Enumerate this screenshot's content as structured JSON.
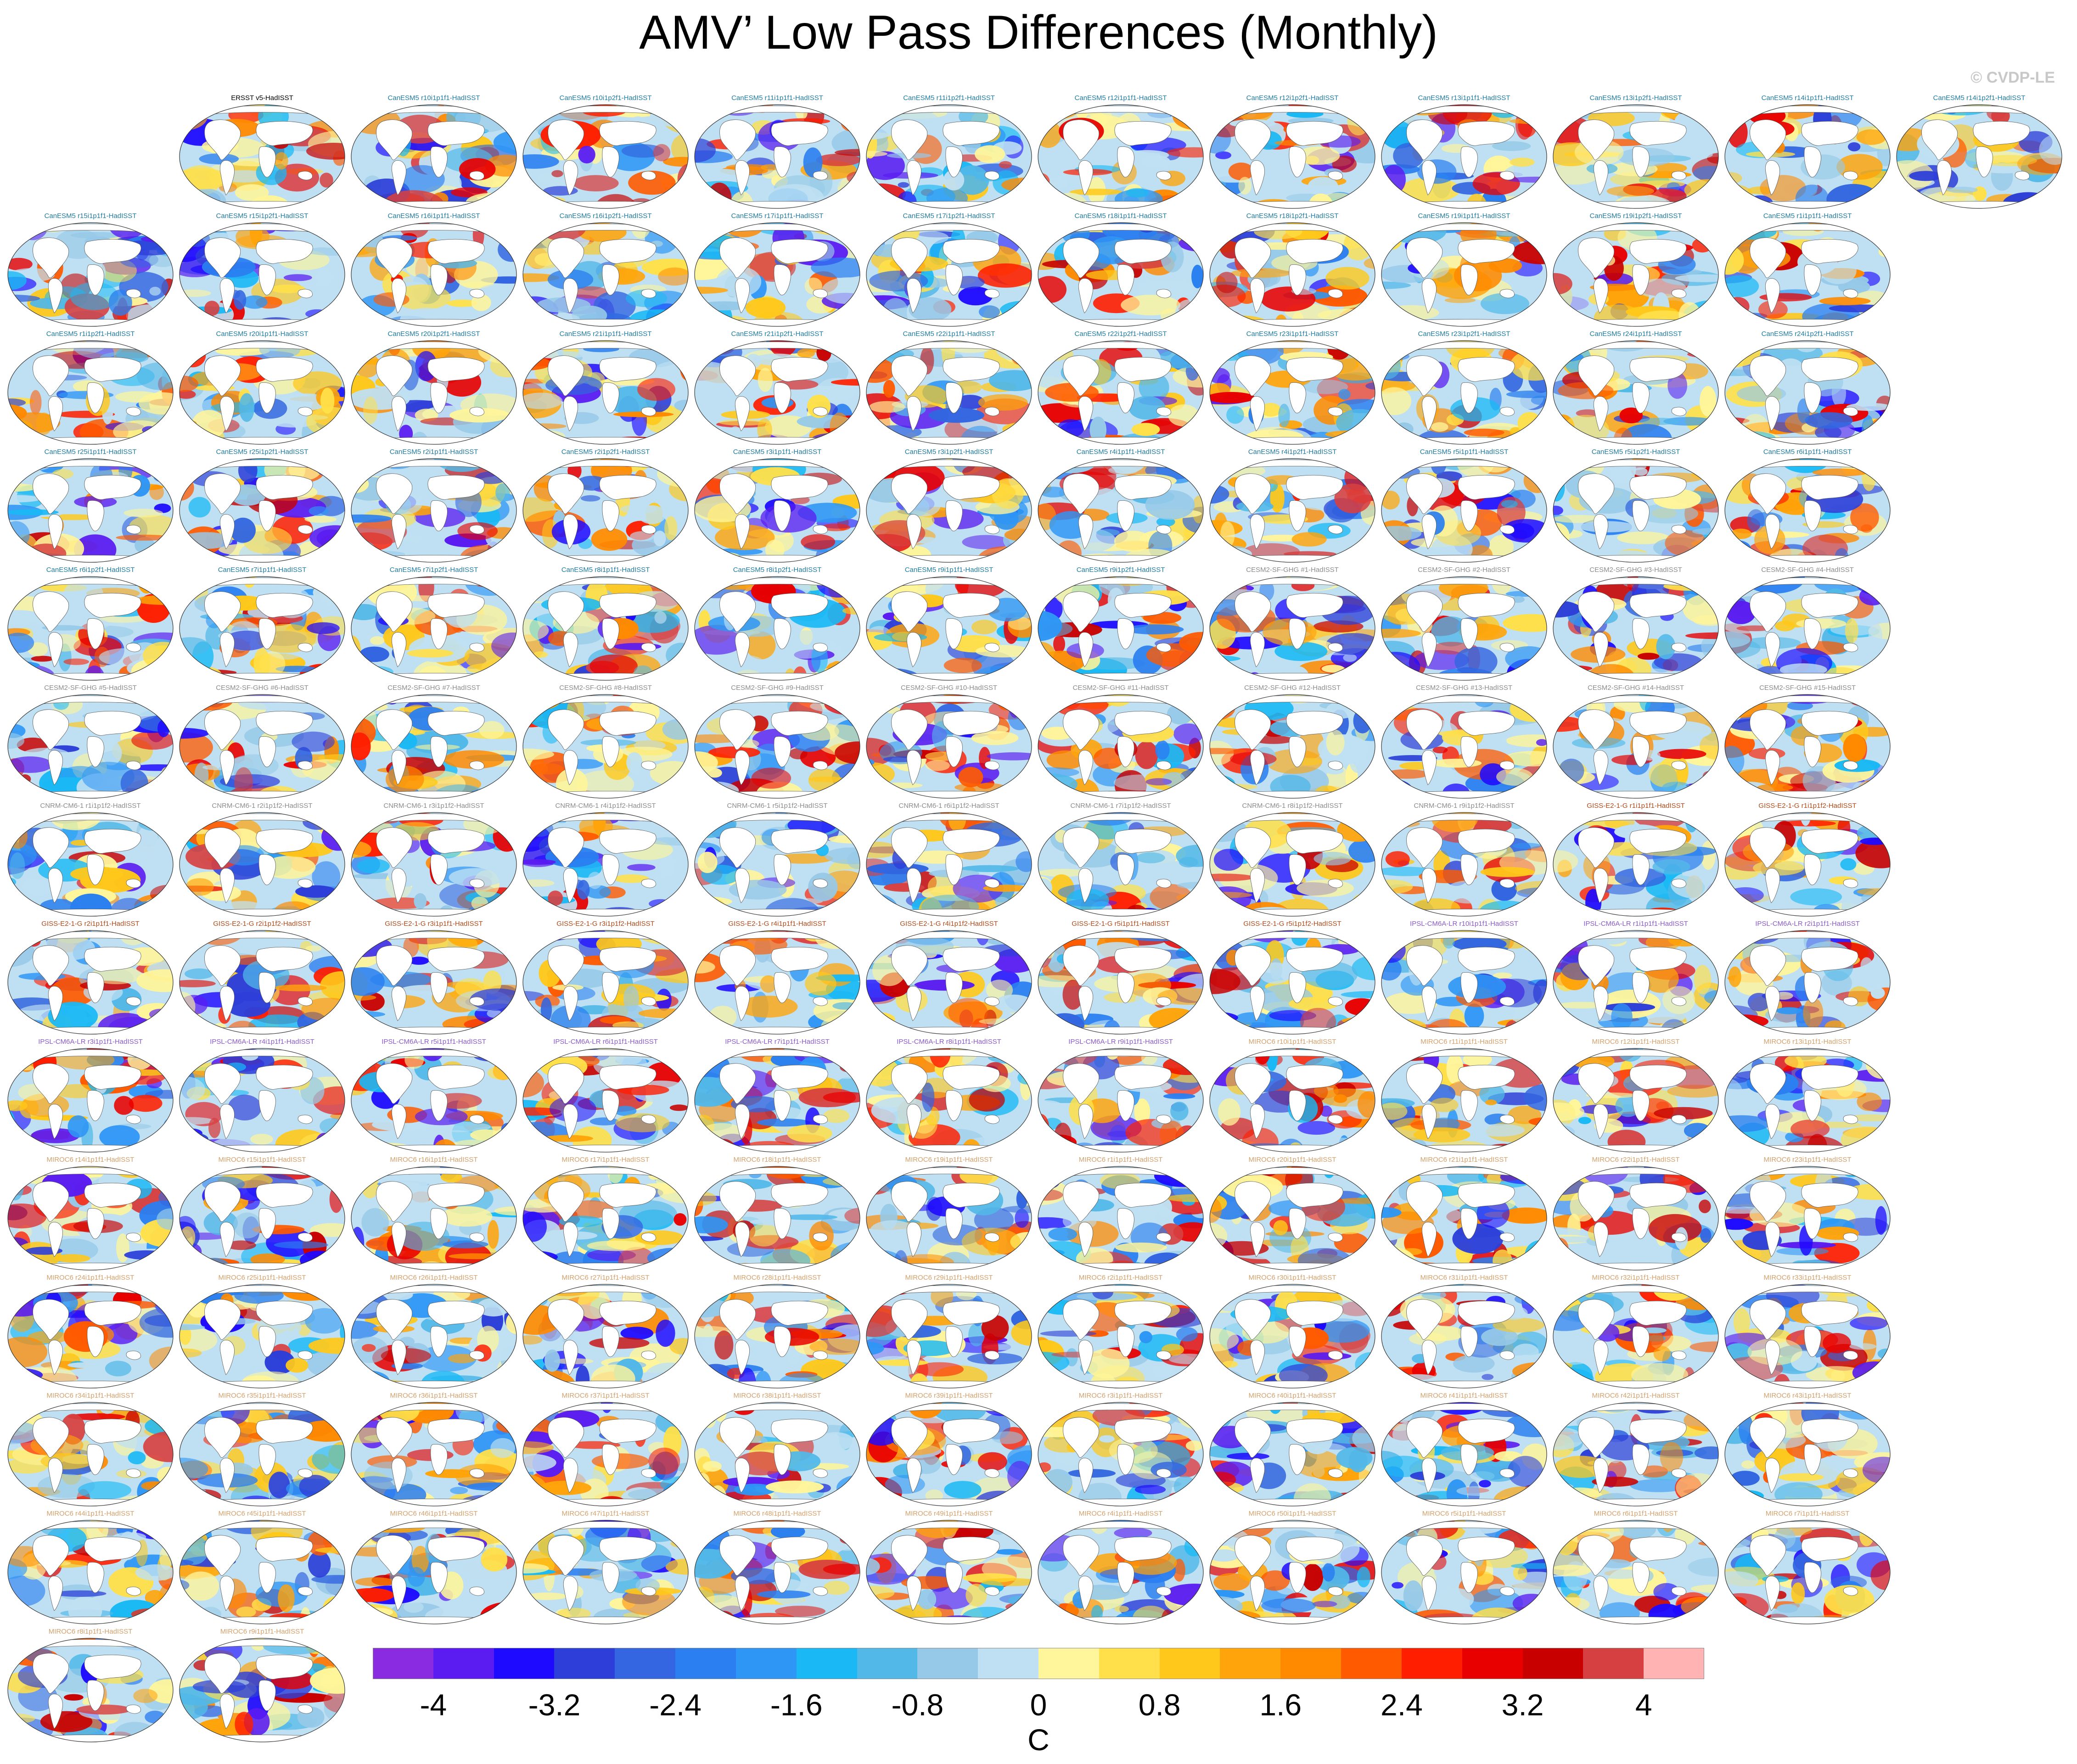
{
  "title": "AMV’ Low Pass Differences (Monthly)",
  "watermark": "© CVDP-LE",
  "chart_data": {
    "type": "heatmap",
    "title": "AMV’ Low Pass Differences (Monthly)",
    "projection": "Robinson global maps",
    "colorbar": {
      "units": "C",
      "ticks": [
        "-4",
        "-3.2",
        "-2.4",
        "-1.6",
        "-0.8",
        "0",
        "0.8",
        "1.6",
        "2.4",
        "3.2",
        "4"
      ],
      "colors": [
        "#8a2be2",
        "#5a1cf0",
        "#1e0aff",
        "#2d3fd8",
        "#3366e0",
        "#2b7ff0",
        "#2e96f5",
        "#1ab9f5",
        "#52b8e8",
        "#96c9e8",
        "#bfe0f2",
        "#fff59a",
        "#ffe04a",
        "#ffc81a",
        "#ffa40a",
        "#ff8a00",
        "#ff5a00",
        "#ff1e00",
        "#e80000",
        "#c80000",
        "#d74040",
        "#ffb3b3"
      ]
    },
    "panels": [
      {
        "label": "ERSST v5-HadISST",
        "color": "#000000"
      },
      {
        "label": "CanESM5 r10i1p1f1-HadISST",
        "color": "#1f7ba0"
      },
      {
        "label": "CanESM5 r10i1p2f1-HadISST",
        "color": "#1f7ba0"
      },
      {
        "label": "CanESM5 r11i1p1f1-HadISST",
        "color": "#1f7ba0"
      },
      {
        "label": "CanESM5 r11i1p2f1-HadISST",
        "color": "#1f7ba0"
      },
      {
        "label": "CanESM5 r12i1p1f1-HadISST",
        "color": "#1f7ba0"
      },
      {
        "label": "CanESM5 r12i1p2f1-HadISST",
        "color": "#1f7ba0"
      },
      {
        "label": "CanESM5 r13i1p1f1-HadISST",
        "color": "#1f7ba0"
      },
      {
        "label": "CanESM5 r13i1p2f1-HadISST",
        "color": "#1f7ba0"
      },
      {
        "label": "CanESM5 r14i1p1f1-HadISST",
        "color": "#1f7ba0"
      },
      {
        "label": "CanESM5 r14i1p2f1-HadISST",
        "color": "#1f7ba0"
      },
      {
        "label": "CanESM5 r15i1p1f1-HadISST",
        "color": "#1f7ba0"
      },
      {
        "label": "CanESM5 r15i1p2f1-HadISST",
        "color": "#1f7ba0"
      },
      {
        "label": "CanESM5 r16i1p1f1-HadISST",
        "color": "#1f7ba0"
      },
      {
        "label": "CanESM5 r16i1p2f1-HadISST",
        "color": "#1f7ba0"
      },
      {
        "label": "CanESM5 r17i1p1f1-HadISST",
        "color": "#1f7ba0"
      },
      {
        "label": "CanESM5 r17i1p2f1-HadISST",
        "color": "#1f7ba0"
      },
      {
        "label": "CanESM5 r18i1p1f1-HadISST",
        "color": "#1f7ba0"
      },
      {
        "label": "CanESM5 r18i1p2f1-HadISST",
        "color": "#1f7ba0"
      },
      {
        "label": "CanESM5 r19i1p1f1-HadISST",
        "color": "#1f7ba0"
      },
      {
        "label": "CanESM5 r19i1p2f1-HadISST",
        "color": "#1f7ba0"
      },
      {
        "label": "CanESM5 r1i1p1f1-HadISST",
        "color": "#1f7ba0"
      },
      {
        "label": "CanESM5 r1i1p2f1-HadISST",
        "color": "#1f7ba0"
      },
      {
        "label": "CanESM5 r20i1p1f1-HadISST",
        "color": "#1f7ba0"
      },
      {
        "label": "CanESM5 r20i1p2f1-HadISST",
        "color": "#1f7ba0"
      },
      {
        "label": "CanESM5 r21i1p1f1-HadISST",
        "color": "#1f7ba0"
      },
      {
        "label": "CanESM5 r21i1p2f1-HadISST",
        "color": "#1f7ba0"
      },
      {
        "label": "CanESM5 r22i1p1f1-HadISST",
        "color": "#1f7ba0"
      },
      {
        "label": "CanESM5 r22i1p2f1-HadISST",
        "color": "#1f7ba0"
      },
      {
        "label": "CanESM5 r23i1p1f1-HadISST",
        "color": "#1f7ba0"
      },
      {
        "label": "CanESM5 r23i1p2f1-HadISST",
        "color": "#1f7ba0"
      },
      {
        "label": "CanESM5 r24i1p1f1-HadISST",
        "color": "#1f7ba0"
      },
      {
        "label": "CanESM5 r24i1p2f1-HadISST",
        "color": "#1f7ba0"
      },
      {
        "label": "CanESM5 r25i1p1f1-HadISST",
        "color": "#1f7ba0"
      },
      {
        "label": "CanESM5 r25i1p2f1-HadISST",
        "color": "#1f7ba0"
      },
      {
        "label": "CanESM5 r2i1p1f1-HadISST",
        "color": "#1f7ba0"
      },
      {
        "label": "CanESM5 r2i1p2f1-HadISST",
        "color": "#1f7ba0"
      },
      {
        "label": "CanESM5 r3i1p1f1-HadISST",
        "color": "#1f7ba0"
      },
      {
        "label": "CanESM5 r3i1p2f1-HadISST",
        "color": "#1f7ba0"
      },
      {
        "label": "CanESM5 r4i1p1f1-HadISST",
        "color": "#1f7ba0"
      },
      {
        "label": "CanESM5 r4i1p2f1-HadISST",
        "color": "#1f7ba0"
      },
      {
        "label": "CanESM5 r5i1p1f1-HadISST",
        "color": "#1f7ba0"
      },
      {
        "label": "CanESM5 r5i1p2f1-HadISST",
        "color": "#1f7ba0"
      },
      {
        "label": "CanESM5 r6i1p1f1-HadISST",
        "color": "#1f7ba0"
      },
      {
        "label": "CanESM5 r6i1p2f1-HadISST",
        "color": "#1f7ba0"
      },
      {
        "label": "CanESM5 r7i1p1f1-HadISST",
        "color": "#1f7ba0"
      },
      {
        "label": "CanESM5 r7i1p2f1-HadISST",
        "color": "#1f7ba0"
      },
      {
        "label": "CanESM5 r8i1p1f1-HadISST",
        "color": "#1f7ba0"
      },
      {
        "label": "CanESM5 r8i1p2f1-HadISST",
        "color": "#1f7ba0"
      },
      {
        "label": "CanESM5 r9i1p1f1-HadISST",
        "color": "#1f7ba0"
      },
      {
        "label": "CanESM5 r9i1p2f1-HadISST",
        "color": "#1f7ba0"
      },
      {
        "label": "CESM2-SF-GHG #1-HadISST",
        "color": "#8c8c8c"
      },
      {
        "label": "CESM2-SF-GHG #2-HadISST",
        "color": "#8c8c8c"
      },
      {
        "label": "CESM2-SF-GHG #3-HadISST",
        "color": "#8c8c8c"
      },
      {
        "label": "CESM2-SF-GHG #4-HadISST",
        "color": "#8c8c8c"
      },
      {
        "label": "CESM2-SF-GHG #5-HadISST",
        "color": "#8c8c8c"
      },
      {
        "label": "CESM2-SF-GHG #6-HadISST",
        "color": "#8c8c8c"
      },
      {
        "label": "CESM2-SF-GHG #7-HadISST",
        "color": "#8c8c8c"
      },
      {
        "label": "CESM2-SF-GHG #8-HadISST",
        "color": "#8c8c8c"
      },
      {
        "label": "CESM2-SF-GHG #9-HadISST",
        "color": "#8c8c8c"
      },
      {
        "label": "CESM2-SF-GHG #10-HadISST",
        "color": "#8c8c8c"
      },
      {
        "label": "CESM2-SF-GHG #11-HadISST",
        "color": "#8c8c8c"
      },
      {
        "label": "CESM2-SF-GHG #12-HadISST",
        "color": "#8c8c8c"
      },
      {
        "label": "CESM2-SF-GHG #13-HadISST",
        "color": "#8c8c8c"
      },
      {
        "label": "CESM2-SF-GHG #14-HadISST",
        "color": "#8c8c8c"
      },
      {
        "label": "CESM2-SF-GHG #15-HadISST",
        "color": "#8c8c8c"
      },
      {
        "label": "CNRM-CM6-1 r1i1p1f2-HadISST",
        "color": "#8c8c8c"
      },
      {
        "label": "CNRM-CM6-1 r2i1p1f2-HadISST",
        "color": "#8c8c8c"
      },
      {
        "label": "CNRM-CM6-1 r3i1p1f2-HadISST",
        "color": "#8c8c8c"
      },
      {
        "label": "CNRM-CM6-1 r4i1p1f2-HadISST",
        "color": "#8c8c8c"
      },
      {
        "label": "CNRM-CM6-1 r5i1p1f2-HadISST",
        "color": "#8c8c8c"
      },
      {
        "label": "CNRM-CM6-1 r6i1p1f2-HadISST",
        "color": "#8c8c8c"
      },
      {
        "label": "CNRM-CM6-1 r7i1p1f2-HadISST",
        "color": "#8c8c8c"
      },
      {
        "label": "CNRM-CM6-1 r8i1p1f2-HadISST",
        "color": "#8c8c8c"
      },
      {
        "label": "CNRM-CM6-1 r9i1p1f2-HadISST",
        "color": "#8c8c8c"
      },
      {
        "label": "GISS-E2-1-G r1i1p1f1-HadISST",
        "color": "#b04a1a"
      },
      {
        "label": "GISS-E2-1-G r1i1p1f2-HadISST",
        "color": "#b04a1a"
      },
      {
        "label": "GISS-E2-1-G r2i1p1f1-HadISST",
        "color": "#b04a1a"
      },
      {
        "label": "GISS-E2-1-G r2i1p1f2-HadISST",
        "color": "#b04a1a"
      },
      {
        "label": "GISS-E2-1-G r3i1p1f1-HadISST",
        "color": "#b04a1a"
      },
      {
        "label": "GISS-E2-1-G r3i1p1f2-HadISST",
        "color": "#b04a1a"
      },
      {
        "label": "GISS-E2-1-G r4i1p1f1-HadISST",
        "color": "#b04a1a"
      },
      {
        "label": "GISS-E2-1-G r4i1p1f2-HadISST",
        "color": "#b04a1a"
      },
      {
        "label": "GISS-E2-1-G r5i1p1f1-HadISST",
        "color": "#b04a1a"
      },
      {
        "label": "GISS-E2-1-G r5i1p1f2-HadISST",
        "color": "#b04a1a"
      },
      {
        "label": "IPSL-CM6A-LR r10i1p1f1-HadISST",
        "color": "#8a5ac8"
      },
      {
        "label": "IPSL-CM6A-LR r1i1p1f1-HadISST",
        "color": "#8a5ac8"
      },
      {
        "label": "IPSL-CM6A-LR r2i1p1f1-HadISST",
        "color": "#8a5ac8"
      },
      {
        "label": "IPSL-CM6A-LR r3i1p1f1-HadISST",
        "color": "#8a5ac8"
      },
      {
        "label": "IPSL-CM6A-LR r4i1p1f1-HadISST",
        "color": "#8a5ac8"
      },
      {
        "label": "IPSL-CM6A-LR r5i1p1f1-HadISST",
        "color": "#8a5ac8"
      },
      {
        "label": "IPSL-CM6A-LR r6i1p1f1-HadISST",
        "color": "#8a5ac8"
      },
      {
        "label": "IPSL-CM6A-LR r7i1p1f1-HadISST",
        "color": "#8a5ac8"
      },
      {
        "label": "IPSL-CM6A-LR r8i1p1f1-HadISST",
        "color": "#8a5ac8"
      },
      {
        "label": "IPSL-CM6A-LR r9i1p1f1-HadISST",
        "color": "#8a5ac8"
      },
      {
        "label": "MIROC6 r10i1p1f1-HadISST",
        "color": "#d4a06a"
      },
      {
        "label": "MIROC6 r11i1p1f1-HadISST",
        "color": "#d4a06a"
      },
      {
        "label": "MIROC6 r12i1p1f1-HadISST",
        "color": "#d4a06a"
      },
      {
        "label": "MIROC6 r13i1p1f1-HadISST",
        "color": "#d4a06a"
      },
      {
        "label": "MIROC6 r14i1p1f1-HadISST",
        "color": "#d4a06a"
      },
      {
        "label": "MIROC6 r15i1p1f1-HadISST",
        "color": "#d4a06a"
      },
      {
        "label": "MIROC6 r16i1p1f1-HadISST",
        "color": "#d4a06a"
      },
      {
        "label": "MIROC6 r17i1p1f1-HadISST",
        "color": "#d4a06a"
      },
      {
        "label": "MIROC6 r18i1p1f1-HadISST",
        "color": "#d4a06a"
      },
      {
        "label": "MIROC6 r19i1p1f1-HadISST",
        "color": "#d4a06a"
      },
      {
        "label": "MIROC6 r1i1p1f1-HadISST",
        "color": "#d4a06a"
      },
      {
        "label": "MIROC6 r20i1p1f1-HadISST",
        "color": "#d4a06a"
      },
      {
        "label": "MIROC6 r21i1p1f1-HadISST",
        "color": "#d4a06a"
      },
      {
        "label": "MIROC6 r22i1p1f1-HadISST",
        "color": "#d4a06a"
      },
      {
        "label": "MIROC6 r23i1p1f1-HadISST",
        "color": "#d4a06a"
      },
      {
        "label": "MIROC6 r24i1p1f1-HadISST",
        "color": "#d4a06a"
      },
      {
        "label": "MIROC6 r25i1p1f1-HadISST",
        "color": "#d4a06a"
      },
      {
        "label": "MIROC6 r26i1p1f1-HadISST",
        "color": "#d4a06a"
      },
      {
        "label": "MIROC6 r27i1p1f1-HadISST",
        "color": "#d4a06a"
      },
      {
        "label": "MIROC6 r28i1p1f1-HadISST",
        "color": "#d4a06a"
      },
      {
        "label": "MIROC6 r29i1p1f1-HadISST",
        "color": "#d4a06a"
      },
      {
        "label": "MIROC6 r2i1p1f1-HadISST",
        "color": "#d4a06a"
      },
      {
        "label": "MIROC6 r30i1p1f1-HadISST",
        "color": "#d4a06a"
      },
      {
        "label": "MIROC6 r31i1p1f1-HadISST",
        "color": "#d4a06a"
      },
      {
        "label": "MIROC6 r32i1p1f1-HadISST",
        "color": "#d4a06a"
      },
      {
        "label": "MIROC6 r33i1p1f1-HadISST",
        "color": "#d4a06a"
      },
      {
        "label": "MIROC6 r34i1p1f1-HadISST",
        "color": "#d4a06a"
      },
      {
        "label": "MIROC6 r35i1p1f1-HadISST",
        "color": "#d4a06a"
      },
      {
        "label": "MIROC6 r36i1p1f1-HadISST",
        "color": "#d4a06a"
      },
      {
        "label": "MIROC6 r37i1p1f1-HadISST",
        "color": "#d4a06a"
      },
      {
        "label": "MIROC6 r38i1p1f1-HadISST",
        "color": "#d4a06a"
      },
      {
        "label": "MIROC6 r39i1p1f1-HadISST",
        "color": "#d4a06a"
      },
      {
        "label": "MIROC6 r3i1p1f1-HadISST",
        "color": "#d4a06a"
      },
      {
        "label": "MIROC6 r40i1p1f1-HadISST",
        "color": "#d4a06a"
      },
      {
        "label": "MIROC6 r41i1p1f1-HadISST",
        "color": "#d4a06a"
      },
      {
        "label": "MIROC6 r42i1p1f1-HadISST",
        "color": "#d4a06a"
      },
      {
        "label": "MIROC6 r43i1p1f1-HadISST",
        "color": "#d4a06a"
      },
      {
        "label": "MIROC6 r44i1p1f1-HadISST",
        "color": "#d4a06a"
      },
      {
        "label": "MIROC6 r45i1p1f1-HadISST",
        "color": "#d4a06a"
      },
      {
        "label": "MIROC6 r46i1p1f1-HadISST",
        "color": "#d4a06a"
      },
      {
        "label": "MIROC6 r47i1p1f1-HadISST",
        "color": "#d4a06a"
      },
      {
        "label": "MIROC6 r48i1p1f1-HadISST",
        "color": "#d4a06a"
      },
      {
        "label": "MIROC6 r49i1p1f1-HadISST",
        "color": "#d4a06a"
      },
      {
        "label": "MIROC6 r4i1p1f1-HadISST",
        "color": "#d4a06a"
      },
      {
        "label": "MIROC6 r50i1p1f1-HadISST",
        "color": "#d4a06a"
      },
      {
        "label": "MIROC6 r5i1p1f1-HadISST",
        "color": "#d4a06a"
      },
      {
        "label": "MIROC6 r6i1p1f1-HadISST",
        "color": "#d4a06a"
      },
      {
        "label": "MIROC6 r7i1p1f1-HadISST",
        "color": "#d4a06a"
      },
      {
        "label": "MIROC6 r8i1p1f1-HadISST",
        "color": "#d4a06a"
      },
      {
        "label": "MIROC6 r9i1p1f1-HadISST",
        "color": "#d4a06a"
      }
    ]
  }
}
